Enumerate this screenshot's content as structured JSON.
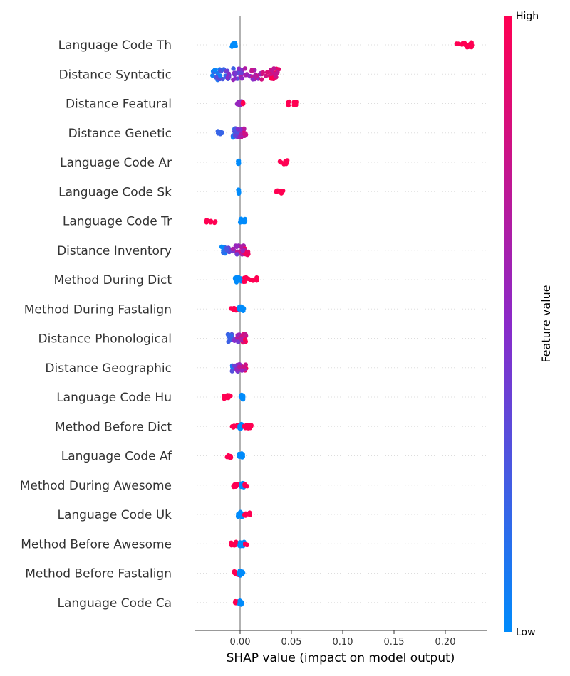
{
  "chart_data": {
    "type": "scatter",
    "subtype": "shap-beeswarm",
    "xlabel": "SHAP value (impact on model output)",
    "xticks": [
      "0.00",
      "0.05",
      "0.10",
      "0.15",
      "0.20"
    ],
    "xlim": [
      -0.044,
      0.24
    ],
    "colorbar": {
      "title": "Feature value",
      "high_label": "High",
      "low_label": "Low",
      "low_color": "#008bfb",
      "high_color": "#ff0052"
    },
    "features": [
      {
        "name": "Language Code Th",
        "clusters": [
          {
            "min": -0.008,
            "max": -0.004,
            "color": 0,
            "n": 12
          },
          {
            "min": 0.21,
            "max": 0.227,
            "color": 1,
            "n": 18
          }
        ]
      },
      {
        "name": "Distance Syntactic",
        "clusters": [
          {
            "min": -0.027,
            "max": 0.038,
            "color": 0.5,
            "n": 90,
            "mixed": true
          }
        ]
      },
      {
        "name": "Distance Featural",
        "clusters": [
          {
            "min": -0.003,
            "max": 0.002,
            "color": 0.55,
            "n": 14
          },
          {
            "min": 0.002,
            "max": 0.003,
            "color": 1,
            "n": 4
          },
          {
            "min": 0.046,
            "max": 0.055,
            "color": 1,
            "n": 10
          }
        ]
      },
      {
        "name": "Distance Genetic",
        "clusters": [
          {
            "min": -0.022,
            "max": -0.016,
            "color": 0.2,
            "n": 8
          },
          {
            "min": -0.007,
            "max": 0.006,
            "color": 0.85,
            "n": 40,
            "mixed": true
          }
        ]
      },
      {
        "name": "Language Code Ar",
        "clusters": [
          {
            "min": -0.002,
            "max": -0.001,
            "color": 0,
            "n": 10
          },
          {
            "min": 0.038,
            "max": 0.046,
            "color": 1,
            "n": 10
          }
        ]
      },
      {
        "name": "Language Code Sk",
        "clusters": [
          {
            "min": -0.002,
            "max": -0.001,
            "color": 0,
            "n": 10
          },
          {
            "min": 0.035,
            "max": 0.042,
            "color": 1,
            "n": 10
          }
        ]
      },
      {
        "name": "Language Code Tr",
        "clusters": [
          {
            "min": -0.033,
            "max": -0.024,
            "color": 1,
            "n": 10
          },
          {
            "min": 0.0,
            "max": 0.005,
            "color": 0,
            "n": 12
          }
        ]
      },
      {
        "name": "Distance Inventory",
        "clusters": [
          {
            "min": -0.018,
            "max": 0.009,
            "color": 0.5,
            "n": 40,
            "mixed": true
          }
        ]
      },
      {
        "name": "Method During Dict",
        "clusters": [
          {
            "min": -0.005,
            "max": 0.003,
            "color": 0,
            "n": 18
          },
          {
            "min": 0.003,
            "max": 0.017,
            "color": 1,
            "n": 14
          }
        ]
      },
      {
        "name": "Method During Fastalign",
        "clusters": [
          {
            "min": -0.009,
            "max": -0.002,
            "color": 1,
            "n": 10
          },
          {
            "min": -0.001,
            "max": 0.004,
            "color": 0,
            "n": 16
          }
        ]
      },
      {
        "name": "Distance Phonological",
        "clusters": [
          {
            "min": -0.012,
            "max": 0.006,
            "color": 0.5,
            "n": 36,
            "mixed": true
          }
        ]
      },
      {
        "name": "Distance Geographic",
        "clusters": [
          {
            "min": -0.008,
            "max": 0.006,
            "color": 0.5,
            "n": 30,
            "mixed": true
          }
        ]
      },
      {
        "name": "Language Code Hu",
        "clusters": [
          {
            "min": -0.016,
            "max": -0.008,
            "color": 1,
            "n": 10
          },
          {
            "min": 0.0,
            "max": 0.003,
            "color": 0,
            "n": 14
          }
        ]
      },
      {
        "name": "Method Before Dict",
        "clusters": [
          {
            "min": -0.008,
            "max": -0.002,
            "color": 1,
            "n": 6
          },
          {
            "min": -0.001,
            "max": 0.003,
            "color": 0,
            "n": 14
          },
          {
            "min": 0.003,
            "max": 0.011,
            "color": 1,
            "n": 10
          }
        ]
      },
      {
        "name": "Language Code Af",
        "clusters": [
          {
            "min": -0.013,
            "max": -0.008,
            "color": 1,
            "n": 8
          },
          {
            "min": -0.001,
            "max": 0.003,
            "color": 0,
            "n": 14
          }
        ]
      },
      {
        "name": "Method During Awesome",
        "clusters": [
          {
            "min": -0.007,
            "max": -0.002,
            "color": 1,
            "n": 8
          },
          {
            "min": -0.001,
            "max": 0.004,
            "color": 0,
            "n": 14
          },
          {
            "min": 0.004,
            "max": 0.007,
            "color": 1,
            "n": 4
          }
        ]
      },
      {
        "name": "Language Code Uk",
        "clusters": [
          {
            "min": -0.002,
            "max": 0.002,
            "color": 0,
            "n": 14
          },
          {
            "min": 0.004,
            "max": 0.01,
            "color": 1,
            "n": 8
          }
        ]
      },
      {
        "name": "Method Before Awesome",
        "clusters": [
          {
            "min": -0.009,
            "max": -0.002,
            "color": 1,
            "n": 8
          },
          {
            "min": -0.001,
            "max": 0.004,
            "color": 0,
            "n": 14
          },
          {
            "min": 0.004,
            "max": 0.007,
            "color": 1,
            "n": 4
          }
        ]
      },
      {
        "name": "Method Before Fastalign",
        "clusters": [
          {
            "min": -0.006,
            "max": -0.001,
            "color": 1,
            "n": 8
          },
          {
            "min": -0.001,
            "max": 0.003,
            "color": 0,
            "n": 14
          }
        ]
      },
      {
        "name": "Language Code Ca",
        "clusters": [
          {
            "min": -0.005,
            "max": -0.001,
            "color": 1,
            "n": 6
          },
          {
            "min": -0.001,
            "max": 0.003,
            "color": 0,
            "n": 14
          }
        ]
      }
    ]
  }
}
